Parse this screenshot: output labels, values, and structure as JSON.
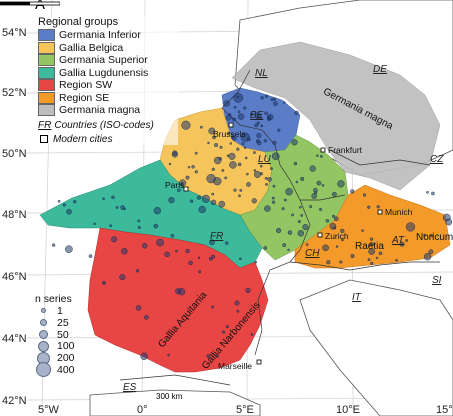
{
  "panel_label": "A",
  "legend": {
    "title": "Regional groups",
    "items": [
      {
        "label": "Germania Inferior",
        "color": "#5b7dc7"
      },
      {
        "label": "Gallia Belgica",
        "color": "#f5c45a"
      },
      {
        "label": "Germania Superior",
        "color": "#93c563"
      },
      {
        "label": "Gallia Lugdunensis",
        "color": "#3db99b"
      },
      {
        "label": "Region SW",
        "color": "#e84545"
      },
      {
        "label": "Region SE",
        "color": "#f39a2a"
      },
      {
        "label": "Germania magna",
        "color": "#bdbdbd"
      }
    ],
    "countries_abbr": "FR",
    "countries_note": "Countries (ISO-codes)",
    "cities_note": "Modern cities"
  },
  "n_legend": {
    "title": "n series",
    "items": [
      "1",
      "25",
      "50",
      "100",
      "200",
      "400"
    ]
  },
  "lat_labels": [
    "54°N",
    "52°N",
    "50°N",
    "48°N",
    "46°N",
    "44°N",
    "42°N"
  ],
  "lon_labels": [
    "5°W",
    "0°",
    "5°E",
    "10°E",
    "15°"
  ],
  "countries": [
    "NL",
    "DE",
    "BE",
    "LU",
    "CZ",
    "FR",
    "CH",
    "AT",
    "SI",
    "IT",
    "ES"
  ],
  "cities": [
    "Brussels",
    "Frankfurt",
    "Paris",
    "Munich",
    "Zurich",
    "Marseille"
  ],
  "provinces": [
    "Germania magna",
    "Raetia",
    "Noricum",
    "Gallia Aquitania",
    "Gallia Narbonensis"
  ],
  "scale_label": "300 km"
}
